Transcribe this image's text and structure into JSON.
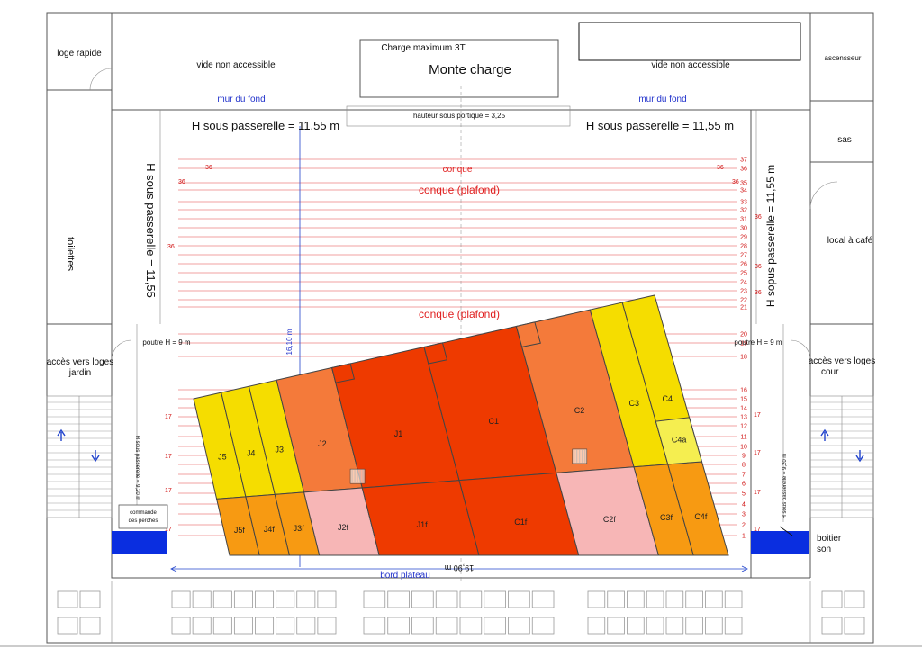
{
  "rooms": {
    "loge_rapide": "loge rapide",
    "vide_left": "vide non accessible",
    "vide_right": "vide non accessible",
    "ascenseur": "ascensseur",
    "sas": "sas",
    "toilettes": "toilettes",
    "local_cafe": "local à café",
    "acces_jardin_1": "accès vers loges",
    "acces_jardin_2": "jardin",
    "acces_cour_1": "accès vers loges",
    "acces_cour_2": "cour",
    "boitier_1": "boitier",
    "boitier_2": "son"
  },
  "monte_charge": {
    "charge": "Charge maximum 3T",
    "title": "Monte charge"
  },
  "stage": {
    "mur_du_fond_left": "mur du fond",
    "mur_du_fond_right": "mur du fond",
    "portique": "hauteur sous portique = 3,25",
    "h_passerelle_left": "H sous passerelle = 11,55 m",
    "h_passerelle_right": "H sous passerelle = 11,55 m",
    "h_passerelle_vert_left": "H sous passerelle = 11,55",
    "h_passerelle_vert_right": "H sopus passerelle = 11,55 m",
    "conque": "conque",
    "conque_plafond_1": "conque (plafond)",
    "conque_plafond_2": "conque (plafond)",
    "poutre_left": "poutre H = 9 m",
    "poutre_right": "poutre H = 9 m",
    "depth": "16,10 m",
    "width": "19,90 m",
    "bord_plateau": "bord plateau",
    "h_small_left": "H sous passerelle = 9,20 m",
    "h_small_right": "H sous passerelle = 9,20 m",
    "commande_1": "commande",
    "commande_2": "des perches"
  },
  "bars": {
    "right_numbers": [
      "37",
      "36",
      "35",
      "34",
      "33",
      "32",
      "31",
      "30",
      "29",
      "28",
      "27",
      "26",
      "25",
      "24",
      "23",
      "22",
      "21",
      "20",
      "19",
      "18",
      "16",
      "15",
      "14",
      "13",
      "12",
      "11",
      "10",
      "9",
      "8",
      "7",
      "6",
      "5",
      "4",
      "3",
      "2",
      "1"
    ],
    "marks_36": [
      "36",
      "36",
      "36",
      "36",
      "36",
      "36",
      "36",
      "36"
    ],
    "marks_17": [
      "17",
      "17",
      "17",
      "17",
      "17",
      "17",
      "17",
      "17"
    ]
  },
  "zones": {
    "top": [
      "J5",
      "J4",
      "J3",
      "J2",
      "J1",
      "C1",
      "C2",
      "C3",
      "C4"
    ],
    "c4a": "C4a",
    "bottom": [
      "J5f",
      "J4f",
      "J3f",
      "J2f",
      "J1f",
      "C1f",
      "C2f",
      "C3f",
      "C4f"
    ]
  },
  "colors": {
    "yellow": "#f5dd00",
    "orange_light": "#f47a3a",
    "red": "#ee3a00",
    "orange": "#f79a12",
    "pink": "#f7b6b6",
    "c4a": "#f5ee50",
    "blue_block": "#0a2ee0"
  }
}
